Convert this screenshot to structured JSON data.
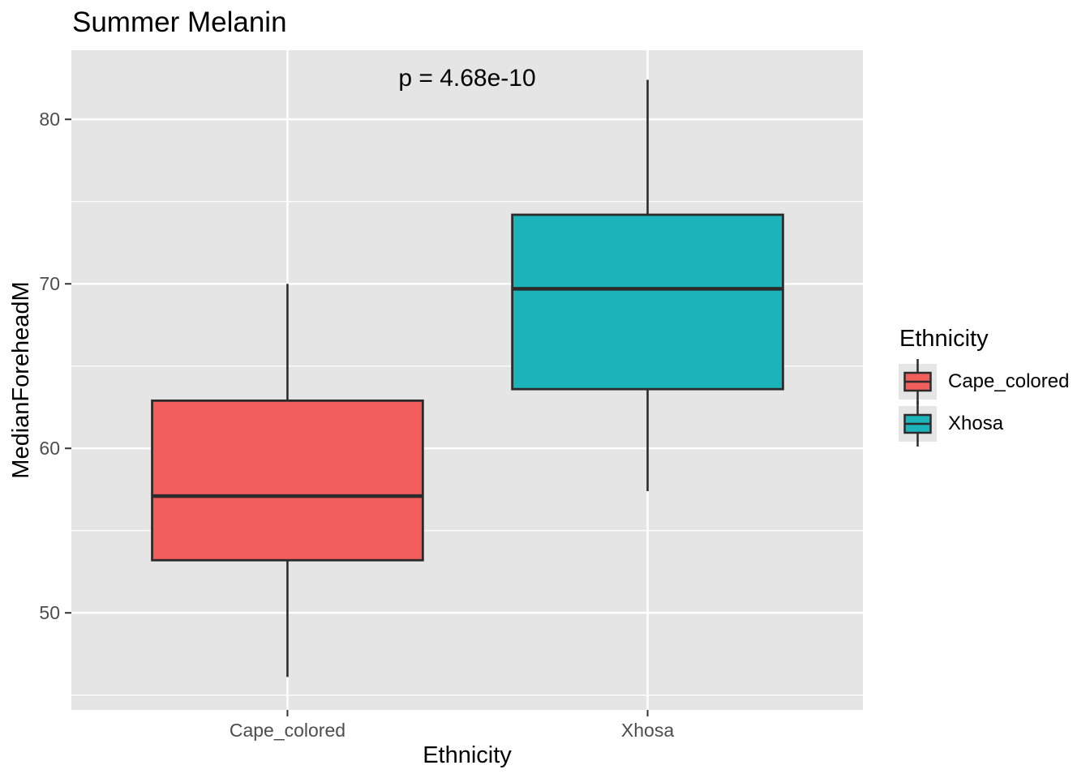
{
  "title": "Summer Melanin",
  "annotation": {
    "p_label": "p = 4.68e-10"
  },
  "axes": {
    "x_title": "Ethnicity",
    "y_title": "MedianForeheadM"
  },
  "legend": {
    "title": "Ethnicity",
    "position": "right"
  },
  "theme": {
    "panel_bg": "#E5E5E5",
    "grid_color": "#FFFFFF",
    "outline_color": "#2B2B2B",
    "tick_mark_color": "#333333",
    "tick_text_color": "#4D4D4D",
    "title_text_color": "#000000",
    "legend_key_bg": "#E5E5E5"
  },
  "chart_data": {
    "type": "boxplot",
    "title": "Summer Melanin",
    "annotation": "p = 4.68e-10",
    "xlabel": "Ethnicity",
    "ylabel": "MedianForeheadM",
    "ylim": [
      44.1,
      84.2
    ],
    "yticks": [
      50,
      60,
      70,
      80
    ],
    "yminor": [
      45,
      55,
      65,
      75
    ],
    "grid": true,
    "legend_position": "right",
    "categories": [
      "Cape_colored",
      "Xhosa"
    ],
    "box_width_frac": 0.342,
    "series": [
      {
        "name": "Cape_colored",
        "color": "#F25E5C",
        "min": 46.1,
        "q1": 53.2,
        "median": 57.1,
        "q3": 62.9,
        "max": 70.0,
        "x_frac": 0.273
      },
      {
        "name": "Xhosa",
        "color": "#1CB4BB",
        "min": 57.4,
        "q1": 63.6,
        "median": 69.7,
        "q3": 74.2,
        "max": 82.4,
        "x_frac": 0.728
      }
    ]
  }
}
